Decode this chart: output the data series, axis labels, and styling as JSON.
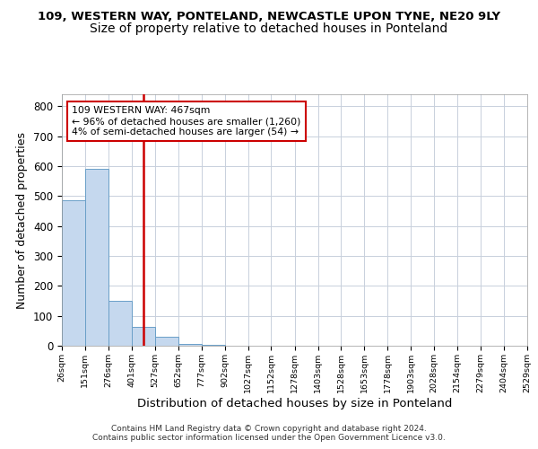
{
  "title1": "109, WESTERN WAY, PONTELAND, NEWCASTLE UPON TYNE, NE20 9LY",
  "title2": "Size of property relative to detached houses in Ponteland",
  "xlabel": "Distribution of detached houses by size in Ponteland",
  "ylabel": "Number of detached properties",
  "bar_edges": [
    26,
    151,
    276,
    401,
    527,
    652,
    777,
    902,
    1027,
    1152,
    1278,
    1403,
    1528,
    1653,
    1778,
    1903,
    2028,
    2154,
    2279,
    2404,
    2529
  ],
  "bar_heights": [
    485,
    590,
    150,
    62,
    30,
    5,
    2,
    1,
    0,
    0,
    0,
    0,
    0,
    0,
    0,
    0,
    0,
    0,
    0,
    0
  ],
  "bar_color": "#c5d8ee",
  "bar_edge_color": "#6a9fc8",
  "property_size": 467,
  "vline_color": "#cc0000",
  "annotation_text": "109 WESTERN WAY: 467sqm\n← 96% of detached houses are smaller (1,260)\n4% of semi-detached houses are larger (54) →",
  "annotation_box_color": "#ffffff",
  "annotation_box_edge": "#cc0000",
  "ylim": [
    0,
    840
  ],
  "yticks": [
    0,
    100,
    200,
    300,
    400,
    500,
    600,
    700,
    800
  ],
  "footer": "Contains HM Land Registry data © Crown copyright and database right 2024.\nContains public sector information licensed under the Open Government Licence v3.0.",
  "bg_color": "#ffffff",
  "grid_color": "#c8d0dc",
  "title1_fontsize": 9.5,
  "title2_fontsize": 10
}
